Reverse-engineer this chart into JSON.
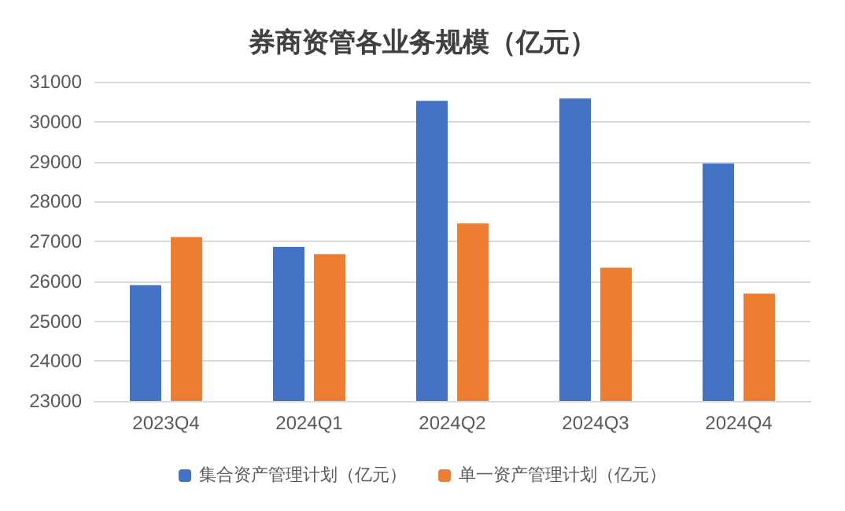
{
  "chart_data": {
    "type": "bar",
    "title": "券商资管各业务规模（亿元）",
    "categories": [
      "2023Q4",
      "2024Q1",
      "2024Q2",
      "2024Q3",
      "2024Q4"
    ],
    "series": [
      {
        "name": "集合资产管理计划（亿元）",
        "color": "#4472c4",
        "values": [
          25900,
          26860,
          30520,
          30580,
          28950
        ]
      },
      {
        "name": "单一资产管理计划（亿元）",
        "color": "#ed7d31",
        "values": [
          27110,
          26680,
          27450,
          26340,
          25690
        ]
      }
    ],
    "ylim": [
      23000,
      31000
    ],
    "yticks": [
      23000,
      24000,
      25000,
      26000,
      27000,
      28000,
      29000,
      30000,
      31000
    ],
    "grid": "y",
    "legend": "bottom"
  }
}
